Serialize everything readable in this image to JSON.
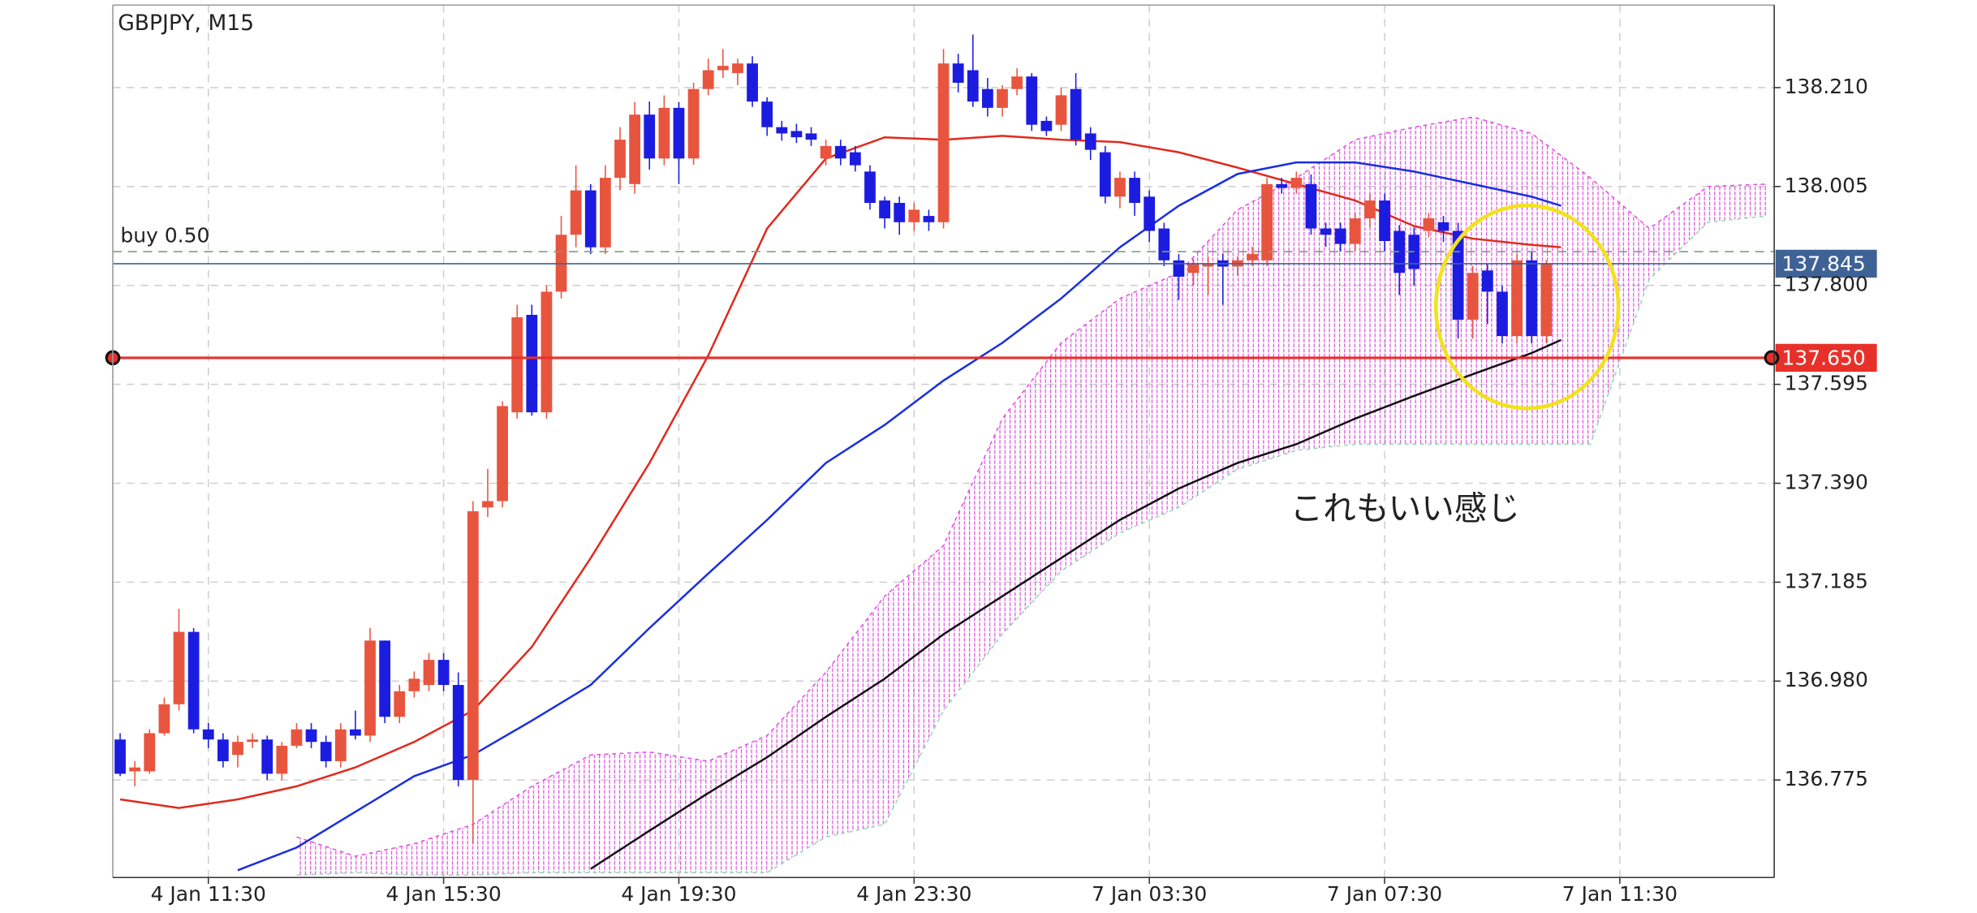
{
  "chart_data": {
    "type": "candlestick",
    "title": "GBPJPY, M15",
    "categories": [
      null,
      null,
      null,
      null,
      null,
      null,
      "4 Jan 11:30",
      null,
      null,
      null,
      null,
      null,
      null,
      null,
      null,
      null,
      null,
      null,
      null,
      null,
      null,
      null,
      "4 Jan 15:30",
      null,
      null,
      null,
      null,
      null,
      null,
      null,
      null,
      null,
      null,
      null,
      null,
      null,
      null,
      null,
      "4 Jan 19:30",
      null,
      null,
      null,
      null,
      null,
      null,
      null,
      null,
      null,
      null,
      null,
      null,
      null,
      null,
      null,
      "4 Jan 23:30",
      null,
      null,
      null,
      null,
      null,
      null,
      null,
      null,
      null,
      null,
      null,
      null,
      null,
      null,
      null,
      "7 Jan 03:30",
      null,
      null,
      null,
      null,
      null,
      null,
      null,
      null,
      null,
      null,
      null,
      null,
      null,
      null,
      null,
      "7 Jan 07:30",
      null,
      null,
      null,
      null,
      null,
      null,
      null,
      null,
      null,
      null,
      null,
      null,
      null,
      null,
      null,
      "7 Jan 11:30",
      null,
      null,
      null,
      null,
      null,
      null,
      null,
      null,
      null,
      null
    ],
    "open": [
      136.859,
      136.793,
      136.793,
      136.872,
      136.932,
      137.082,
      136.88,
      136.859,
      136.827,
      136.854,
      136.859,
      136.788,
      136.846,
      136.88,
      136.854,
      136.814,
      136.88,
      136.867,
      137.064,
      136.906,
      136.959,
      136.972,
      137.024,
      136.972,
      136.775,
      137.34,
      137.353,
      137.537,
      137.739,
      137.537,
      137.787,
      137.905,
      137.997,
      137.879,
      138.023,
      138.01,
      138.154,
      138.063,
      138.168,
      138.063,
      138.207,
      138.246,
      138.24,
      138.26,
      138.181,
      138.128,
      138.12,
      138.115,
      138.063,
      138.089,
      138.076,
      138.036,
      137.976,
      137.971,
      137.931,
      137.944,
      137.931,
      138.26,
      138.246,
      138.207,
      138.168,
      138.207,
      138.233,
      138.141,
      138.133,
      138.207,
      138.115,
      138.076,
      137.984,
      138.023,
      137.984,
      137.918,
      137.852,
      137.826,
      137.839,
      137.852,
      137.839,
      137.852,
      137.852,
      138.01,
      138.002,
      138.01,
      137.918,
      137.918,
      137.886,
      137.939,
      137.976,
      137.913,
      137.905,
      137.913,
      137.931,
      137.913,
      137.729,
      137.831,
      137.787,
      137.695,
      137.852,
      137.695,
      null,
      null,
      null,
      null,
      null,
      null,
      null,
      null,
      null,
      null,
      null,
      null,
      null,
      null,
      null
    ],
    "high": [
      136.872,
      136.814,
      136.88,
      136.946,
      137.13,
      137.09,
      136.893,
      136.872,
      136.867,
      136.872,
      136.867,
      136.854,
      136.893,
      136.893,
      136.867,
      136.893,
      136.919,
      137.09,
      137.064,
      136.972,
      137.0,
      137.038,
      137.038,
      136.998,
      137.353,
      137.42,
      137.56,
      137.76,
      137.76,
      137.8,
      137.944,
      138.049,
      138.01,
      138.049,
      138.128,
      138.18,
      138.181,
      138.194,
      138.18,
      138.22,
      138.27,
      138.29,
      138.27,
      138.275,
      138.19,
      138.141,
      138.135,
      138.128,
      138.102,
      138.102,
      138.089,
      138.049,
      137.984,
      137.984,
      137.971,
      137.957,
      138.29,
      138.28,
      138.32,
      138.23,
      138.215,
      138.25,
      138.24,
      138.15,
      138.21,
      138.24,
      138.128,
      138.089,
      138.036,
      138.036,
      137.997,
      137.93,
      137.865,
      137.855,
      137.86,
      137.865,
      137.86,
      137.88,
      138.023,
      138.023,
      138.036,
      138.03,
      137.93,
      137.93,
      137.95,
      137.99,
      137.99,
      137.925,
      137.92,
      137.95,
      137.944,
      137.93,
      137.84,
      137.844,
      137.8,
      137.865,
      137.87,
      137.852,
      null,
      null,
      null,
      null,
      null,
      null,
      null,
      null,
      null,
      null,
      null,
      null,
      null,
      null,
      null
    ],
    "low": [
      136.783,
      136.762,
      136.788,
      136.867,
      136.919,
      136.872,
      136.841,
      136.801,
      136.801,
      136.841,
      136.775,
      136.775,
      136.841,
      136.841,
      136.801,
      136.801,
      136.859,
      136.854,
      136.893,
      136.893,
      136.946,
      136.959,
      136.959,
      136.762,
      136.643,
      137.32,
      137.34,
      137.524,
      137.53,
      137.524,
      137.773,
      137.879,
      137.865,
      137.865,
      137.997,
      137.99,
      138.04,
      138.049,
      138.01,
      138.05,
      138.194,
      138.23,
      138.215,
      138.17,
      138.11,
      138.1,
      138.095,
      138.089,
      138.049,
      138.049,
      138.036,
      137.957,
      137.918,
      137.905,
      137.913,
      137.913,
      137.918,
      138.2,
      138.17,
      138.15,
      138.15,
      138.194,
      138.12,
      138.11,
      138.12,
      138.09,
      138.06,
      137.97,
      137.96,
      137.944,
      137.89,
      137.84,
      137.77,
      137.8,
      137.78,
      137.76,
      137.82,
      137.84,
      137.84,
      137.99,
      137.99,
      137.905,
      137.88,
      137.87,
      137.87,
      137.92,
      137.87,
      137.78,
      137.8,
      137.9,
      137.89,
      137.69,
      137.69,
      137.72,
      137.68,
      137.68,
      137.68,
      137.68,
      null,
      null,
      null,
      null,
      null,
      null,
      null,
      null,
      null,
      null,
      null,
      null,
      null,
      null,
      null
    ],
    "close": [
      136.788,
      136.801,
      136.872,
      136.932,
      137.082,
      136.88,
      136.859,
      136.814,
      136.854,
      136.859,
      136.788,
      136.846,
      136.88,
      136.854,
      136.814,
      136.88,
      136.867,
      137.064,
      136.906,
      136.959,
      136.985,
      137.024,
      136.972,
      136.775,
      137.332,
      137.353,
      137.55,
      137.734,
      137.537,
      137.787,
      137.905,
      137.997,
      137.879,
      138.023,
      138.102,
      138.154,
      138.063,
      138.168,
      138.063,
      138.207,
      138.246,
      138.255,
      138.26,
      138.181,
      138.128,
      138.115,
      138.107,
      138.102,
      138.089,
      138.063,
      138.049,
      137.971,
      137.939,
      137.931,
      137.957,
      137.931,
      138.26,
      138.22,
      138.181,
      138.168,
      138.207,
      138.233,
      138.133,
      138.12,
      138.194,
      138.102,
      138.081,
      137.984,
      138.023,
      137.971,
      137.913,
      137.852,
      137.818,
      137.844,
      137.844,
      137.839,
      137.852,
      137.865,
      138.01,
      138.002,
      138.023,
      137.918,
      137.905,
      137.886,
      137.939,
      137.976,
      137.892,
      137.826,
      137.834,
      137.939,
      137.913,
      137.729,
      137.826,
      137.787,
      137.695,
      137.852,
      137.695,
      137.845,
      null,
      null,
      null,
      null,
      null,
      null,
      null,
      null,
      null,
      null,
      null,
      null,
      null,
      null,
      null
    ],
    "up_color": "#e8553f",
    "down_color": "#1c1ce0",
    "lines": [
      {
        "color": "#e02a1e",
        "x": [
          0,
          4,
          8,
          12,
          16,
          20,
          24,
          28,
          32,
          36,
          40,
          44,
          48,
          52,
          56,
          60,
          64,
          68,
          72,
          76,
          80,
          84,
          88,
          92,
          96,
          98
        ],
        "values": [
          136.735,
          136.717,
          136.735,
          136.762,
          136.801,
          136.854,
          136.919,
          137.051,
          137.235,
          137.432,
          137.655,
          137.918,
          138.063,
          138.107,
          138.102,
          138.11,
          138.102,
          138.097,
          138.076,
          138.044,
          138.01,
          137.976,
          137.923,
          137.897,
          137.884,
          137.879
        ]
      },
      {
        "color": "#1a2ee0",
        "x": [
          8,
          12,
          16,
          20,
          24,
          28,
          32,
          36,
          40,
          44,
          48,
          52,
          56,
          60,
          64,
          68,
          72,
          76,
          80,
          84,
          88,
          92,
          96,
          98
        ],
        "values": [
          136.588,
          136.635,
          136.709,
          136.783,
          136.827,
          136.898,
          136.972,
          137.09,
          137.203,
          137.314,
          137.432,
          137.511,
          137.603,
          137.681,
          137.773,
          137.879,
          137.965,
          138.031,
          138.055,
          138.055,
          138.036,
          138.01,
          137.984,
          137.965
        ]
      },
      {
        "color": "#111111",
        "x": [
          32,
          36,
          40,
          44,
          48,
          52,
          56,
          60,
          64,
          68,
          72,
          76,
          80,
          84,
          88,
          92,
          96,
          98
        ],
        "values": [
          136.591,
          136.67,
          136.748,
          136.822,
          136.906,
          136.985,
          137.077,
          137.156,
          137.235,
          137.314,
          137.379,
          137.432,
          137.471,
          137.524,
          137.571,
          137.616,
          137.66,
          137.687
        ]
      }
    ],
    "cloud": {
      "color": "#e050e0",
      "span_b_color": "#8fdcb0",
      "x": [
        12,
        16,
        20,
        24,
        28,
        32,
        36,
        40,
        44,
        48,
        52,
        56,
        60,
        64,
        68,
        72,
        76,
        80,
        84,
        88,
        92,
        96,
        100,
        104,
        108,
        112
      ],
      "span_a": [
        136.657,
        136.617,
        136.643,
        136.683,
        136.762,
        136.827,
        136.833,
        136.814,
        136.867,
        136.998,
        137.156,
        137.261,
        137.524,
        137.681,
        137.773,
        137.826,
        137.957,
        138.023,
        138.102,
        138.128,
        138.149,
        138.115,
        138.023,
        137.918,
        138.005,
        138.01
      ],
      "span_b": [
        136.578,
        136.583,
        136.578,
        136.578,
        136.583,
        136.583,
        136.583,
        136.583,
        136.583,
        136.657,
        136.683,
        136.919,
        137.077,
        137.208,
        137.287,
        137.34,
        137.419,
        137.458,
        137.471,
        137.471,
        137.471,
        137.471,
        137.471,
        137.813,
        137.931,
        137.944
      ]
    },
    "levels": [
      {
        "value": 137.87,
        "label": "buy 0.50",
        "color": "#7aa07a",
        "dashed": true
      },
      {
        "value": 137.845,
        "color": "#3f6296",
        "tag": true
      },
      {
        "value": 137.65,
        "value_label": "137.650",
        "color": "#e8302a",
        "tag": true,
        "handles": true
      }
    ],
    "annotation": "これもいい感じ",
    "ylim": [
      136.573,
      138.381
    ],
    "yticks": [
      {
        "value": 138.21,
        "label": "138.210"
      },
      138.005,
      {
        "value": 137.8,
        "label": "137.800"
      },
      137.595,
      {
        "value": 137.39,
        "label": "137.390"
      },
      137.185,
      {
        "value": 136.98,
        "label": "136.980"
      },
      136.775
    ],
    "grid": true
  }
}
